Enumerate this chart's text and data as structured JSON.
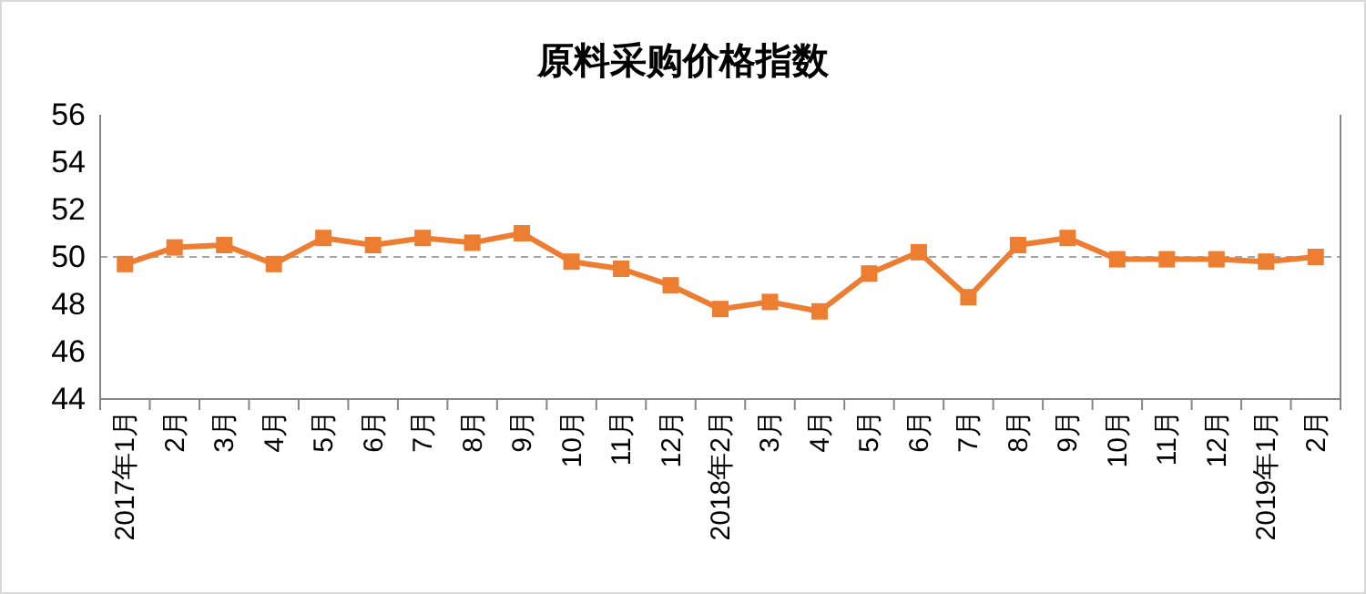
{
  "chart_data": {
    "type": "line",
    "title": "原料采购价格指数",
    "categories": [
      "2017年1月",
      "2月",
      "3月",
      "4月",
      "5月",
      "6月",
      "7月",
      "8月",
      "9月",
      "10月",
      "11月",
      "12月",
      "2018年2月",
      "3月",
      "4月",
      "5月",
      "6月",
      "7月",
      "8月",
      "9月",
      "10月",
      "11月",
      "12月",
      "2019年1月",
      "2月"
    ],
    "series": [
      {
        "color": "#ed7d31",
        "values": [
          49.7,
          50.4,
          50.5,
          49.7,
          50.8,
          50.5,
          50.8,
          50.6,
          51.0,
          49.8,
          49.5,
          48.8,
          47.8,
          48.1,
          47.7,
          49.3,
          50.2,
          48.3,
          50.5,
          50.8,
          49.9,
          49.9,
          49.9,
          49.8,
          50.0
        ]
      }
    ],
    "ylim": [
      44,
      56
    ],
    "yticks": [
      44,
      46,
      48,
      50,
      52,
      54,
      56
    ],
    "grid": false,
    "marker": "square",
    "line_style": "solid",
    "ref_lines": [
      {
        "axis": "y",
        "value": 50,
        "color": "#a6a6a6",
        "line_style": "dashed"
      }
    ]
  }
}
